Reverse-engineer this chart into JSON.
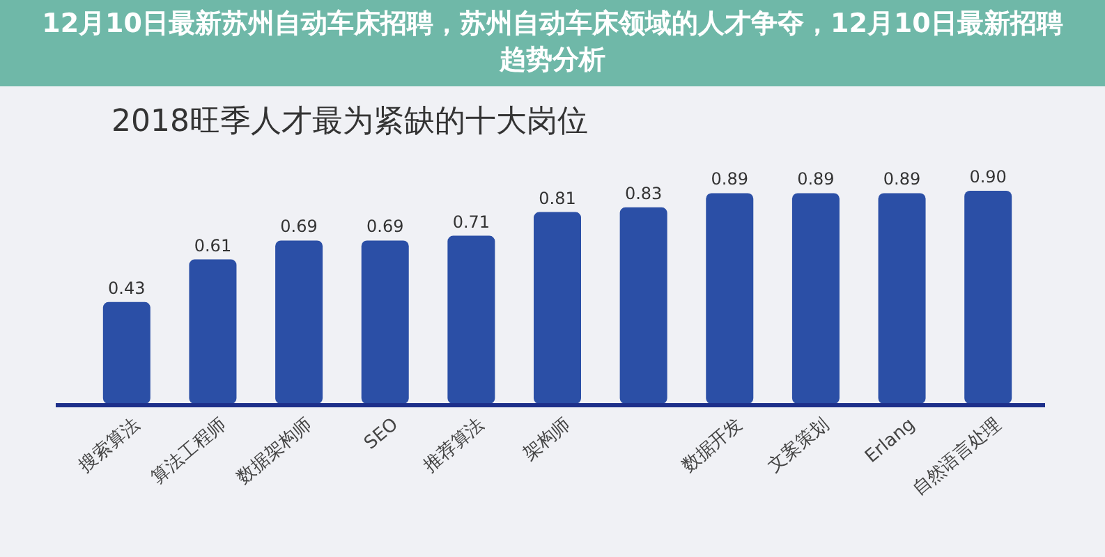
{
  "chart_data": {
    "type": "bar",
    "title": "2018旺季人才最为紧缺的十大岗位",
    "annotations": [
      "12月10日最新苏州自动车床招聘，苏州自动车床领域的人才争夺，12月10日最新招聘趋势分析"
    ],
    "categories": [
      "搜索算法",
      "算法工程师",
      "数据架构师",
      "SEO",
      "推荐算法",
      "架构师",
      null,
      "数据开发",
      "文案策划",
      "Erlang",
      "自然语言处理"
    ],
    "values": [
      0.43,
      0.61,
      0.69,
      0.69,
      0.71,
      0.81,
      0.83,
      0.89,
      0.89,
      0.89,
      0.9
    ],
    "value_labels": [
      "0.43",
      "0.61",
      "0.69",
      "0.69",
      "0.71",
      "0.81",
      "0.83",
      "0.89",
      "0.89",
      "0.89",
      "0.90"
    ],
    "color": "#2b4fa6"
  }
}
